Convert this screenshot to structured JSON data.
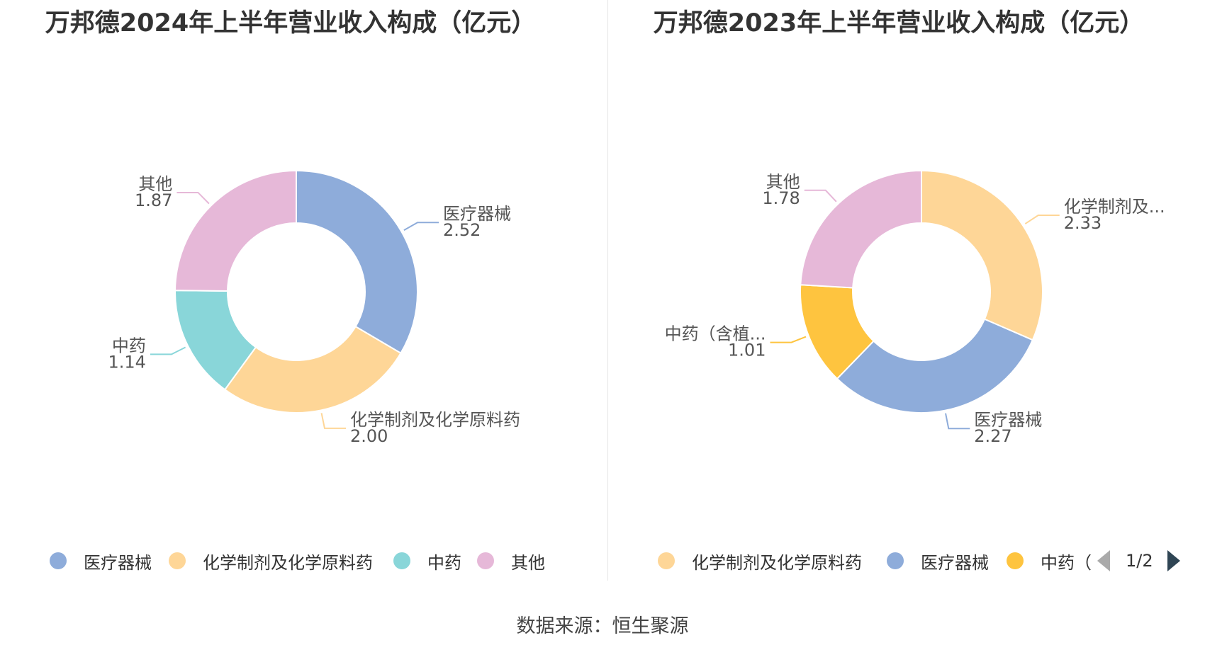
{
  "chart_data": [
    {
      "type": "pie",
      "title": "万邦德2024年上半年营业收入构成（亿元）",
      "slices": [
        {
          "name": "医疗器械",
          "label": "医疗器械",
          "value": 2.52,
          "value_text": "2.52",
          "color": "#8eacda"
        },
        {
          "name": "化学制剂及化学原料药",
          "label": "化学制剂及化学原料药",
          "value": 2.0,
          "value_text": "2.00",
          "color": "#fed697"
        },
        {
          "name": "中药",
          "label": "中药",
          "value": 1.14,
          "value_text": "1.14",
          "color": "#89d6d9"
        },
        {
          "name": "其他",
          "label": "其他",
          "value": 1.87,
          "value_text": "1.87",
          "color": "#e6b8d8"
        }
      ],
      "legend": [
        "医疗器械",
        "化学制剂及化学原料药",
        "中药",
        "其他"
      ]
    },
    {
      "type": "pie",
      "title": "万邦德2023年上半年营业收入构成（亿元）",
      "slices": [
        {
          "name": "化学制剂及化学原料药",
          "label": "化学制剂及...",
          "value": 2.33,
          "value_text": "2.33",
          "color": "#fed697"
        },
        {
          "name": "医疗器械",
          "label": "医疗器械",
          "value": 2.27,
          "value_text": "2.27",
          "color": "#8eacda"
        },
        {
          "name": "中药（含植...",
          "label": "中药（含植...",
          "value": 1.01,
          "value_text": "1.01",
          "color": "#fec43f"
        },
        {
          "name": "其他",
          "label": "其他",
          "value": 1.78,
          "value_text": "1.78",
          "color": "#e6b8d8"
        }
      ],
      "legend": [
        "化学制剂及化学原料药",
        "医疗器械",
        "中药（"
      ],
      "pager": "1/2"
    }
  ],
  "footer": "数据来源：恒生聚源"
}
